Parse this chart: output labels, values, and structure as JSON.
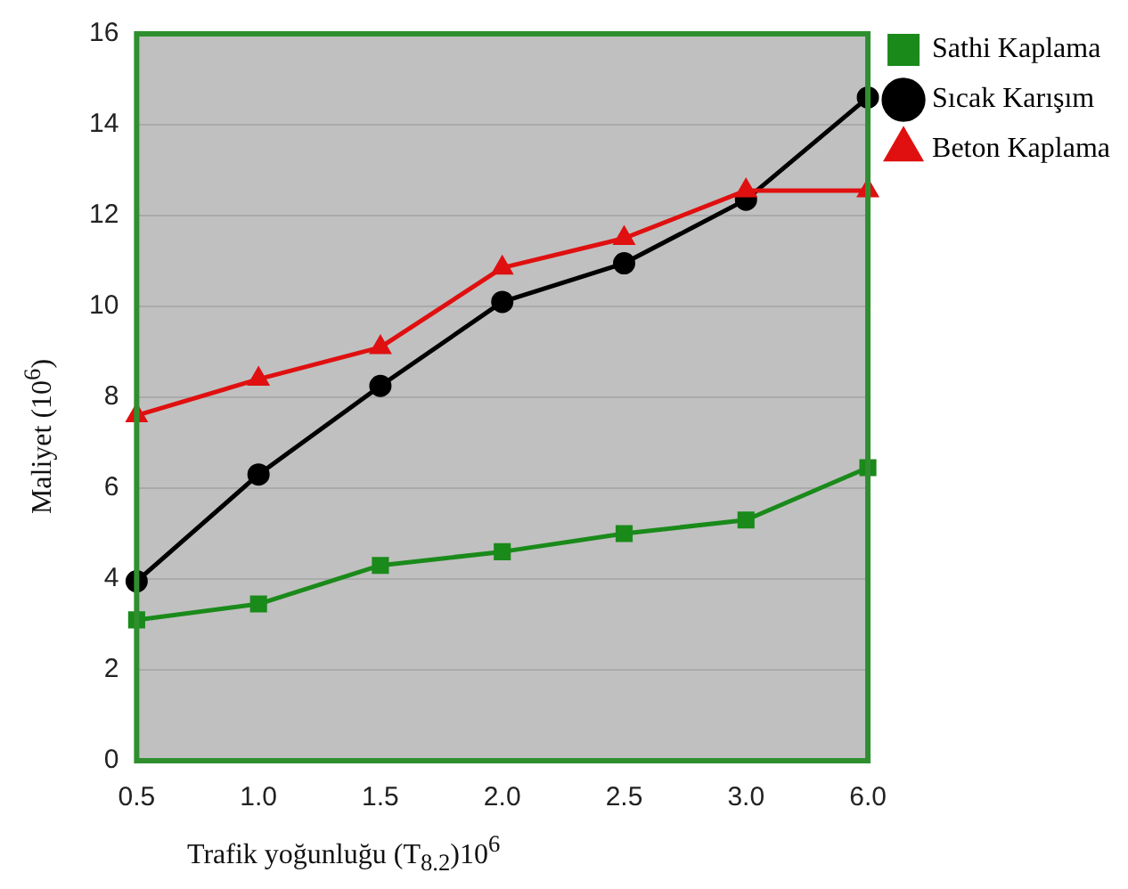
{
  "chart_data": {
    "type": "line",
    "xlabel": "Trafik yoğunluğu (T$_{8.2}$)10$^{6}$",
    "ylabel": "Maliyet (10$^{6}$)",
    "categories": [
      "0.5",
      "1.0",
      "1.5",
      "2.0",
      "2.5",
      "3.0",
      "6.0"
    ],
    "series": [
      {
        "name": "Sathi Kaplama",
        "color": "#1a8a1a",
        "marker": "square",
        "values": [
          3.1,
          3.45,
          4.3,
          4.6,
          5.0,
          5.3,
          6.45
        ]
      },
      {
        "name": "Sıcak Karışım",
        "color": "#000000",
        "marker": "circle",
        "values": [
          3.95,
          6.3,
          8.25,
          10.1,
          10.95,
          12.35,
          14.6
        ]
      },
      {
        "name": "Beton Kaplama",
        "color": "#e01010",
        "marker": "triangle",
        "values": [
          7.6,
          8.4,
          9.1,
          10.85,
          11.5,
          12.55,
          12.55
        ]
      }
    ],
    "ylim": [
      0,
      16
    ],
    "yticks": [
      0,
      2,
      4,
      6,
      8,
      10,
      12,
      14,
      16
    ],
    "grid": "y",
    "legend": "top right",
    "line_style": "solid"
  }
}
